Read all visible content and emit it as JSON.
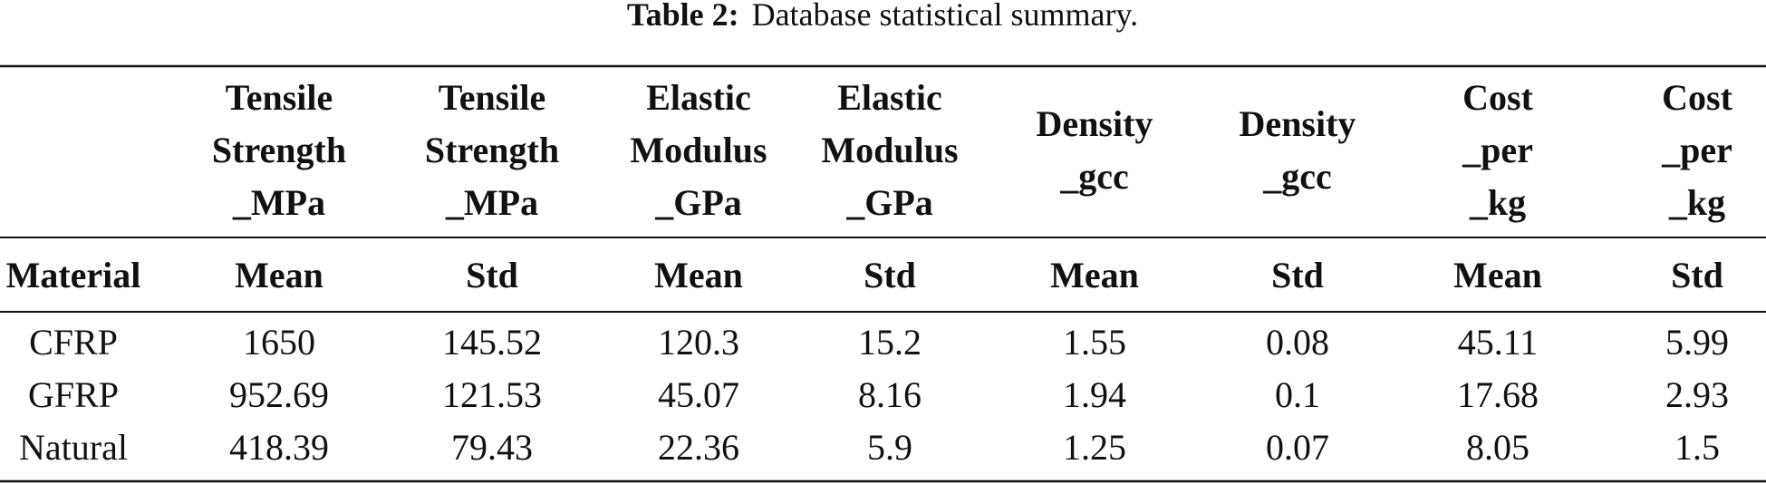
{
  "caption": {
    "label": "Table 2:",
    "text": "Database statistical summary."
  },
  "table": {
    "header_top": [
      [
        "Tensile",
        "Strength",
        "_MPa"
      ],
      [
        "Tensile",
        "Strength",
        "_MPa"
      ],
      [
        "Elastic",
        "Modulus",
        "_GPa"
      ],
      [
        "Elastic",
        "Modulus",
        "_GPa"
      ],
      [
        "Density",
        "_gcc"
      ],
      [
        "Density",
        "_gcc"
      ],
      [
        "Cost",
        "_per",
        "_kg"
      ],
      [
        "Cost",
        "_per",
        "_kg"
      ]
    ],
    "subheader": [
      "Material",
      "Mean",
      "Std",
      "Mean",
      "Std",
      "Mean",
      "Std",
      "Mean",
      "Std"
    ],
    "rows": [
      [
        "CFRP",
        "1650",
        "145.52",
        "120.3",
        "15.2",
        "1.55",
        "0.08",
        "45.11",
        "5.99"
      ],
      [
        "GFRP",
        "952.69",
        "121.53",
        "45.07",
        "8.16",
        "1.94",
        "0.1",
        "17.68",
        "2.93"
      ],
      [
        "Natural",
        "418.39",
        "79.43",
        "22.36",
        "5.9",
        "1.25",
        "0.07",
        "8.05",
        "1.5"
      ]
    ]
  }
}
